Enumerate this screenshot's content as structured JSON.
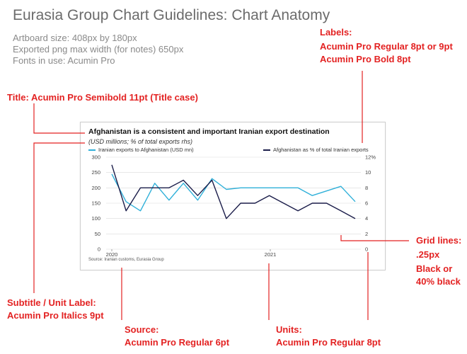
{
  "header": {
    "title": "Eurasia Group Chart Guidelines: Chart Anatomy",
    "meta": [
      "Artboard size: 408px by 180px",
      "Exported png max width (for notes) 650px",
      "Fonts in use: Acumin Pro"
    ]
  },
  "annotations": {
    "title_label": "Title: Acumin Pro Semibold 11pt (Title case)",
    "labels_title": "Labels:",
    "labels_line1": "Acumin Pro Regular 8pt or 9pt",
    "labels_line2": "Acumin Pro Bold 8pt",
    "grid_line1": "Grid lines:",
    "grid_line2": ".25px",
    "grid_line3": "Black or",
    "grid_line4": "40% black",
    "subtitle_line1": "Subtitle / Unit Label:",
    "subtitle_line2": "Acumin Pro Italics 9pt",
    "source_line1": "Source:",
    "source_line2": "Acumin Pro Regular 6pt",
    "units_line1": "Units:",
    "units_line2": "Acumin Pro Regular 8pt"
  },
  "colors": {
    "annotation": "#e32222",
    "series_teal": "#2fb0d9",
    "series_navy": "#1b1d4a",
    "gridline": "#d9d9d9"
  },
  "chart_data": {
    "type": "line",
    "title": "Afghanistan is a consistent and important Iranian export destination",
    "subtitle": "(USD millions; % of total exports rhs)",
    "source": "Source: Iranian customs, Eurasia Group",
    "x_tick_labels": [
      "2020",
      "2021"
    ],
    "y_left": {
      "range": [
        0,
        300
      ],
      "ticks": [
        0,
        50,
        100,
        150,
        200,
        250,
        300
      ]
    },
    "y_right": {
      "range": [
        0,
        12
      ],
      "ticks": [
        0,
        2,
        4,
        6,
        8,
        10,
        "12%"
      ]
    },
    "grid": true,
    "legend_placement": "top",
    "series": [
      {
        "name": "Iranian exports to Afghanistan (USD mn)",
        "axis": "left",
        "color": "#2fb0d9",
        "values": [
          245,
          155,
          125,
          215,
          160,
          215,
          160,
          230,
          195,
          200,
          200,
          200,
          200,
          200,
          175,
          190,
          205,
          155
        ]
      },
      {
        "name": "Afghanistan as % of total Iranian exports",
        "axis": "right",
        "color": "#1b1d4a",
        "values": [
          11,
          5,
          8,
          8,
          8,
          9,
          7,
          9,
          4,
          6,
          6,
          7,
          6,
          5,
          6,
          6,
          5,
          4
        ]
      }
    ]
  }
}
